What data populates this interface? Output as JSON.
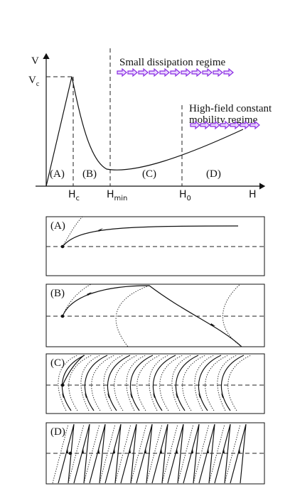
{
  "plot": {
    "y_axis": {
      "main": "V"
    },
    "peak_label": {
      "main": "V",
      "sub": "c"
    },
    "x_axis": {
      "main": "H"
    },
    "ticks": [
      {
        "main": "H",
        "sub": "c"
      },
      {
        "main": "H",
        "sub": "min"
      },
      {
        "main": "H",
        "sub": "0"
      }
    ],
    "regions": [
      "(A)",
      "(B)",
      "(C)",
      "(D)"
    ],
    "regimes": [
      {
        "lines": [
          "Small dissipation regime"
        ]
      },
      {
        "lines": [
          "High-field constant",
          "mobility regime"
        ]
      }
    ]
  },
  "panels": [
    {
      "label": "(A)"
    },
    {
      "label": "(B)"
    },
    {
      "label": "(C)"
    },
    {
      "label": "(D)"
    }
  ]
}
